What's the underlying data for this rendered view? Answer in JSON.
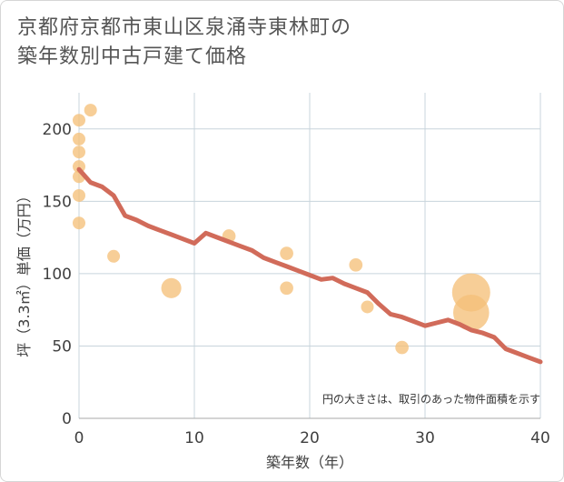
{
  "title_line1": "京都府京都市東山区泉涌寺東林町の",
  "title_line2": "築年数別中古戸建て価格",
  "note": "円の大きさは、取引のあった物件面積を示す",
  "chart_data": {
    "type": "scatter",
    "xlabel": "築年数（年）",
    "ylabel": "坪（3.3㎡）単価（万円）",
    "xlim": [
      0,
      40
    ],
    "ylim": [
      0,
      225
    ],
    "xticks": [
      0,
      10,
      20,
      30,
      40
    ],
    "yticks": [
      0,
      50,
      100,
      150,
      200
    ],
    "grid": true,
    "colors": {
      "bubble": "#f5c07a",
      "trend": "#d16b5a",
      "grid": "#c8d4dc"
    },
    "bubbles": [
      {
        "x": 0,
        "y": 206,
        "size": 1
      },
      {
        "x": 0,
        "y": 193,
        "size": 1
      },
      {
        "x": 0,
        "y": 184,
        "size": 1
      },
      {
        "x": 0,
        "y": 174,
        "size": 1
      },
      {
        "x": 0,
        "y": 167,
        "size": 1
      },
      {
        "x": 0,
        "y": 154,
        "size": 1
      },
      {
        "x": 0,
        "y": 135,
        "size": 1
      },
      {
        "x": 1,
        "y": 213,
        "size": 1
      },
      {
        "x": 3,
        "y": 112,
        "size": 1
      },
      {
        "x": 8,
        "y": 90,
        "size": 2.5
      },
      {
        "x": 13,
        "y": 126,
        "size": 1.1
      },
      {
        "x": 18,
        "y": 114,
        "size": 1.1
      },
      {
        "x": 18,
        "y": 90,
        "size": 1.1
      },
      {
        "x": 24,
        "y": 106,
        "size": 1.1
      },
      {
        "x": 25,
        "y": 77,
        "size": 1
      },
      {
        "x": 28,
        "y": 49,
        "size": 1.1
      },
      {
        "x": 34,
        "y": 87,
        "size": 9
      },
      {
        "x": 34,
        "y": 73,
        "size": 8
      }
    ],
    "trend": [
      {
        "x": 0,
        "y": 172
      },
      {
        "x": 1,
        "y": 163
      },
      {
        "x": 2,
        "y": 160
      },
      {
        "x": 3,
        "y": 154
      },
      {
        "x": 4,
        "y": 140
      },
      {
        "x": 5,
        "y": 137
      },
      {
        "x": 6,
        "y": 133
      },
      {
        "x": 7,
        "y": 130
      },
      {
        "x": 8,
        "y": 127
      },
      {
        "x": 9,
        "y": 124
      },
      {
        "x": 10,
        "y": 121
      },
      {
        "x": 11,
        "y": 128
      },
      {
        "x": 12,
        "y": 125
      },
      {
        "x": 13,
        "y": 122
      },
      {
        "x": 14,
        "y": 119
      },
      {
        "x": 15,
        "y": 116
      },
      {
        "x": 16,
        "y": 111
      },
      {
        "x": 17,
        "y": 108
      },
      {
        "x": 18,
        "y": 105
      },
      {
        "x": 19,
        "y": 102
      },
      {
        "x": 20,
        "y": 99
      },
      {
        "x": 21,
        "y": 96
      },
      {
        "x": 22,
        "y": 97
      },
      {
        "x": 23,
        "y": 93
      },
      {
        "x": 24,
        "y": 90
      },
      {
        "x": 25,
        "y": 87
      },
      {
        "x": 26,
        "y": 79
      },
      {
        "x": 27,
        "y": 72
      },
      {
        "x": 28,
        "y": 70
      },
      {
        "x": 29,
        "y": 67
      },
      {
        "x": 30,
        "y": 64
      },
      {
        "x": 31,
        "y": 66
      },
      {
        "x": 32,
        "y": 68
      },
      {
        "x": 33,
        "y": 65
      },
      {
        "x": 34,
        "y": 61
      },
      {
        "x": 35,
        "y": 59
      },
      {
        "x": 36,
        "y": 56
      },
      {
        "x": 37,
        "y": 48
      },
      {
        "x": 38,
        "y": 45
      },
      {
        "x": 39,
        "y": 42
      },
      {
        "x": 40,
        "y": 39
      }
    ]
  }
}
